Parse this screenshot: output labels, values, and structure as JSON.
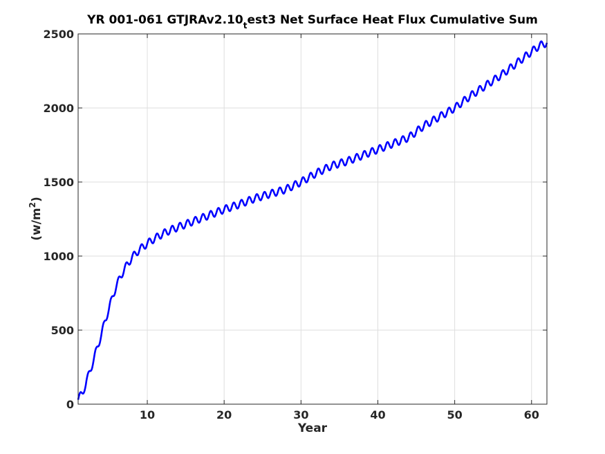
{
  "chart_data": {
    "type": "line",
    "title_parts": {
      "before": "YR 001-061 GTJRAv2.10",
      "subscript": "t",
      "after": "est3 Net Surface Heat Flux  Cumulative Sum"
    },
    "xlabel": "Year",
    "ylabel_parts": {
      "before": "(w/m",
      "superscript": "2",
      "after": ")"
    },
    "xlim": [
      1,
      62
    ],
    "ylim": [
      0,
      2500
    ],
    "xticks": [
      10,
      20,
      30,
      40,
      50,
      60
    ],
    "yticks": [
      0,
      500,
      1000,
      1500,
      2000,
      2500
    ],
    "grid": true,
    "line_color": "#0000ff",
    "seasonal_amplitude": 25,
    "series": [
      {
        "x": [
          1,
          1.5,
          2,
          2.5,
          3,
          3.5,
          4,
          4.5,
          5,
          5.5,
          6,
          6.5,
          7,
          7.5,
          8,
          9,
          10,
          11,
          12,
          13,
          14,
          15,
          16,
          17,
          18,
          19,
          20,
          22,
          24,
          26,
          28,
          30,
          32,
          34,
          36,
          38,
          40,
          42,
          44,
          46,
          48,
          50,
          52,
          54,
          56,
          58,
          60,
          61,
          62
        ],
        "values": [
          30,
          75,
          130,
          225,
          290,
          390,
          460,
          565,
          640,
          730,
          800,
          860,
          910,
          950,
          990,
          1045,
          1085,
          1120,
          1150,
          1175,
          1195,
          1215,
          1235,
          1255,
          1275,
          1295,
          1315,
          1350,
          1390,
          1420,
          1450,
          1500,
          1560,
          1610,
          1640,
          1680,
          1720,
          1760,
          1800,
          1880,
          1940,
          2000,
          2080,
          2150,
          2220,
          2300,
          2380,
          2420,
          2440
        ]
      }
    ]
  }
}
